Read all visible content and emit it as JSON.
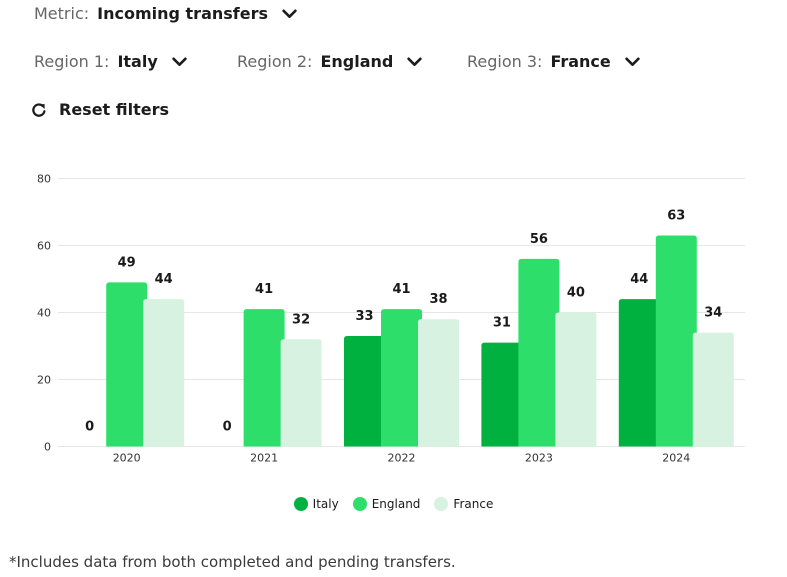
{
  "filters": {
    "metric": {
      "label": "Metric:",
      "value": "Incoming transfers"
    },
    "region1": {
      "label": "Region 1:",
      "value": "Italy"
    },
    "region2": {
      "label": "Region 2:",
      "value": "England"
    },
    "region3": {
      "label": "Region 3:",
      "value": "France"
    }
  },
  "reset": {
    "label": "Reset filters"
  },
  "footnote": "*Includes data from both completed and pending transfers.",
  "chart_data": {
    "type": "bar",
    "categories": [
      "2020",
      "2021",
      "2022",
      "2023",
      "2024"
    ],
    "ylim": [
      0,
      80
    ],
    "yticks": [
      0,
      20,
      40,
      60,
      80
    ],
    "grid": true,
    "legend_position": "bottom-center",
    "series": [
      {
        "name": "Italy",
        "color": "#00b140",
        "values": [
          0,
          0,
          33,
          31,
          44
        ]
      },
      {
        "name": "England",
        "color": "#2ddf6a",
        "values": [
          49,
          41,
          41,
          56,
          63
        ]
      },
      {
        "name": "France",
        "color": "#d7f2e0",
        "values": [
          44,
          32,
          38,
          40,
          34
        ]
      }
    ]
  }
}
